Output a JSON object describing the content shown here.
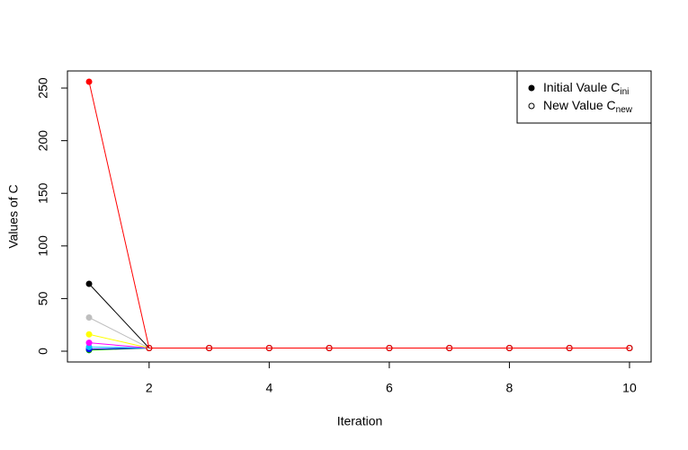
{
  "chart_data": {
    "type": "line",
    "x_label": "Iteration",
    "y_label": "Values of C",
    "x": [
      1,
      2,
      3,
      4,
      5,
      6,
      7,
      8,
      9,
      10
    ],
    "series": [
      {
        "color": "#00a000",
        "values": [
          1,
          3,
          3,
          3,
          3,
          3,
          3,
          3,
          3,
          3
        ]
      },
      {
        "color": "#0000ff",
        "values": [
          2,
          3,
          3,
          3,
          3,
          3,
          3,
          3,
          3,
          3
        ]
      },
      {
        "color": "#00c0ff",
        "values": [
          4,
          3,
          3,
          3,
          3,
          3,
          3,
          3,
          3,
          3
        ]
      },
      {
        "color": "#ff00ff",
        "values": [
          8,
          3,
          3,
          3,
          3,
          3,
          3,
          3,
          3,
          3
        ]
      },
      {
        "color": "#ffff00",
        "values": [
          16,
          3,
          3,
          3,
          3,
          3,
          3,
          3,
          3,
          3
        ]
      },
      {
        "color": "#bebebe",
        "values": [
          32,
          3,
          3,
          3,
          3,
          3,
          3,
          3,
          3,
          3
        ]
      },
      {
        "color": "#000000",
        "values": [
          64,
          3,
          3,
          3,
          3,
          3,
          3,
          3,
          3,
          3
        ]
      },
      {
        "color": "#ff0000",
        "values": [
          256,
          3,
          3,
          3,
          3,
          3,
          3,
          3,
          3,
          3
        ]
      }
    ],
    "xlim": [
      0.64,
      10.36
    ],
    "xticks": [
      2,
      4,
      6,
      8,
      10
    ],
    "ylim": [
      -10.24,
      266.24
    ],
    "yticks": [
      0,
      50,
      100,
      150,
      200,
      250
    ],
    "legend_position": "topright",
    "legend": [
      {
        "label": "Initial Vaule C",
        "sub": "ini",
        "filled": true
      },
      {
        "label": "New Value C",
        "sub": "new",
        "filled": false
      }
    ]
  }
}
